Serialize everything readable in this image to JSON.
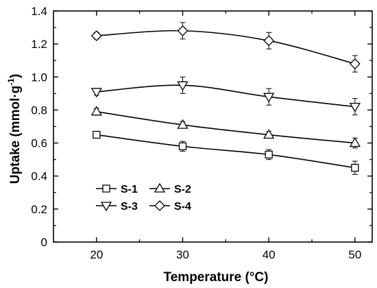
{
  "chart_data": {
    "type": "line",
    "xlabel": "Temperature (°C)",
    "ylabel_main": "Uptake (mmol·g",
    "ylabel_sup": "-1",
    "ylabel_close": ")",
    "xlim": [
      15,
      52
    ],
    "ylim": [
      0,
      1.4
    ],
    "xticks": [
      20,
      30,
      40,
      50
    ],
    "xtick_labels": [
      "20",
      "30",
      "40",
      "50"
    ],
    "yticks": [
      0,
      0.2,
      0.4,
      0.6,
      0.8,
      1.0,
      1.2,
      1.4
    ],
    "ytick_labels": [
      "0",
      "0.2",
      "0.4",
      "0.6",
      "0.8",
      "1.0",
      "1.2",
      "1.4"
    ],
    "x": [
      20,
      30,
      40,
      50
    ],
    "grid": false,
    "legend_position": "lower-left",
    "line_color": "#000000",
    "series": [
      {
        "name": "S-1",
        "marker": "square",
        "values": [
          0.65,
          0.58,
          0.53,
          0.45
        ],
        "errors": [
          0.01,
          0.03,
          0.03,
          0.04
        ]
      },
      {
        "name": "S-2",
        "marker": "triangle-up",
        "values": [
          0.79,
          0.71,
          0.65,
          0.6
        ],
        "errors": [
          0.02,
          0.02,
          0.02,
          0.03
        ]
      },
      {
        "name": "S-3",
        "marker": "triangle-down",
        "values": [
          0.91,
          0.95,
          0.88,
          0.82
        ],
        "errors": [
          0.02,
          0.05,
          0.05,
          0.05
        ]
      },
      {
        "name": "S-4",
        "marker": "diamond",
        "values": [
          1.25,
          1.28,
          1.22,
          1.08
        ],
        "errors": [
          0.02,
          0.05,
          0.05,
          0.05
        ]
      }
    ]
  }
}
